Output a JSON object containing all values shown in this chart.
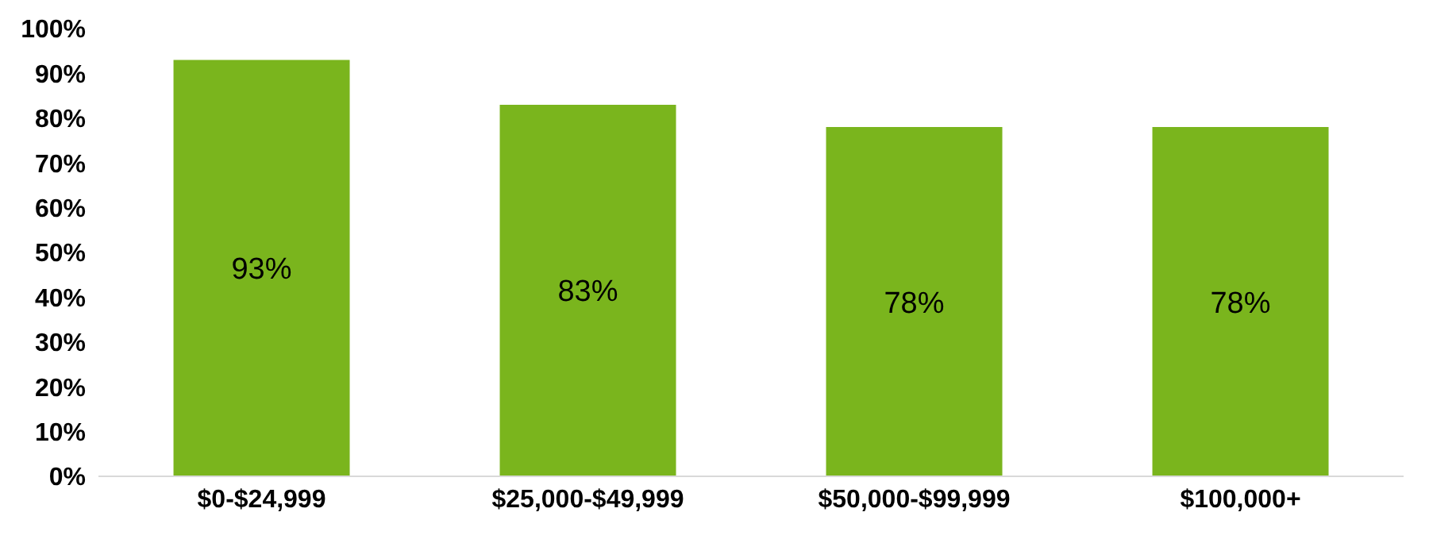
{
  "chart_data": {
    "type": "bar",
    "categories": [
      "$0-$24,999",
      "$25,000-$49,999",
      "$50,000-$99,999",
      "$100,000+"
    ],
    "values": [
      93,
      83,
      78,
      78
    ],
    "color": "#7ab51d",
    "value_labels": [
      "93%",
      "83%",
      "78%",
      "78%"
    ],
    "ylim": [
      0,
      100
    ],
    "yticks": [
      {
        "value": 0,
        "label": "0%"
      },
      {
        "value": 10,
        "label": "10%"
      },
      {
        "value": 20,
        "label": "20%"
      },
      {
        "value": 30,
        "label": "30%"
      },
      {
        "value": 40,
        "label": "40%"
      },
      {
        "value": 50,
        "label": "50%"
      },
      {
        "value": 60,
        "label": "60%"
      },
      {
        "value": 70,
        "label": "70%"
      },
      {
        "value": 80,
        "label": "80%"
      },
      {
        "value": 90,
        "label": "90%"
      },
      {
        "value": 100,
        "label": "100%"
      }
    ],
    "grid": false,
    "legend": false
  }
}
